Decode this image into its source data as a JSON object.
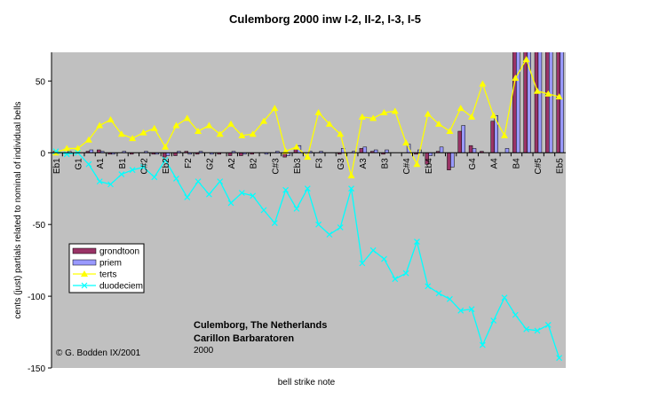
{
  "chart_data": {
    "type": "bar-line",
    "title": "Culemborg 2000 inw I-2, II-2, I-3, I-5",
    "x_label": "bell strike note",
    "y_label": "cents (just) partials related to nominal of individual bells",
    "annotations": [
      "Culemborg, The Netherlands",
      "Carillon Barbaratoren",
      "2000",
      "© G. Bodden IX/2001"
    ],
    "categories": [
      "Eb1",
      null,
      "G1",
      null,
      "A1",
      null,
      "B1",
      null,
      "C#2",
      null,
      "Eb2",
      null,
      "F2",
      null,
      "G2",
      null,
      "A2",
      null,
      "B2",
      null,
      "C#3",
      null,
      "Eb3",
      null,
      "F3",
      null,
      "G3",
      null,
      "A3",
      null,
      "B3",
      null,
      "C#4",
      null,
      "Eb4",
      null,
      null,
      null,
      "G4",
      null,
      "A4",
      null,
      "B4",
      null,
      "C#5",
      null,
      "Eb5"
    ],
    "ylim": [
      -150,
      70
    ],
    "yticks": [
      50,
      0,
      -50,
      -100,
      -150
    ],
    "legend": "left",
    "background": "#c0c0c0",
    "series": [
      {
        "name": "grondtoon",
        "kind": "bar",
        "color": "#993366",
        "values": [
          1,
          0,
          0,
          1,
          2,
          -1,
          0,
          -1,
          0,
          -1,
          -3,
          -2,
          1,
          -1,
          0,
          -1,
          -2,
          -2,
          -1,
          0,
          0,
          -3,
          3,
          0,
          0,
          0,
          -1,
          0,
          3,
          1,
          -1,
          0,
          0,
          -1,
          -8,
          1,
          -12,
          15,
          5,
          1,
          22,
          0,
          90,
          90,
          90,
          90,
          90
        ]
      },
      {
        "name": "priem",
        "kind": "bar",
        "color": "#9999ff",
        "values": [
          1,
          1,
          0,
          2,
          1,
          -1,
          1,
          0,
          1,
          -1,
          -2,
          1,
          -1,
          1,
          -1,
          0,
          1,
          -1,
          0,
          -1,
          1,
          -2,
          5,
          1,
          1,
          0,
          3,
          1,
          4,
          2,
          2,
          0,
          6,
          2,
          -2,
          4,
          -10,
          19,
          3,
          0,
          26,
          3,
          90,
          90,
          90,
          90,
          90
        ]
      },
      {
        "name": "terts",
        "kind": "line",
        "marker": "triangle",
        "color": "#ffff00",
        "values": [
          0,
          3,
          3,
          9,
          19,
          23,
          13,
          10,
          14,
          17,
          4,
          19,
          24,
          15,
          19,
          13,
          20,
          12,
          13,
          22,
          31,
          1,
          4,
          -3,
          28,
          20,
          13,
          -16,
          25,
          24,
          28,
          29,
          7,
          -8,
          27,
          20,
          15,
          31,
          25,
          48,
          26,
          12,
          52,
          65,
          43,
          41,
          39
        ]
      },
      {
        "name": "duodeciem",
        "kind": "line",
        "marker": "x",
        "color": "#00ffff",
        "values": [
          1,
          -1,
          0,
          -8,
          -20,
          -22,
          -15,
          -12,
          -10,
          -17,
          -5,
          -18,
          -31,
          -20,
          -29,
          -20,
          -35,
          -28,
          -30,
          -40,
          -49,
          -26,
          -39,
          -25,
          -50,
          -57,
          -52,
          -25,
          -77,
          -68,
          -74,
          -88,
          -84,
          -62,
          -93,
          -98,
          -102,
          -110,
          -109,
          -134,
          -117,
          -101,
          -113,
          -123,
          -124,
          -120,
          -143
        ]
      }
    ]
  }
}
